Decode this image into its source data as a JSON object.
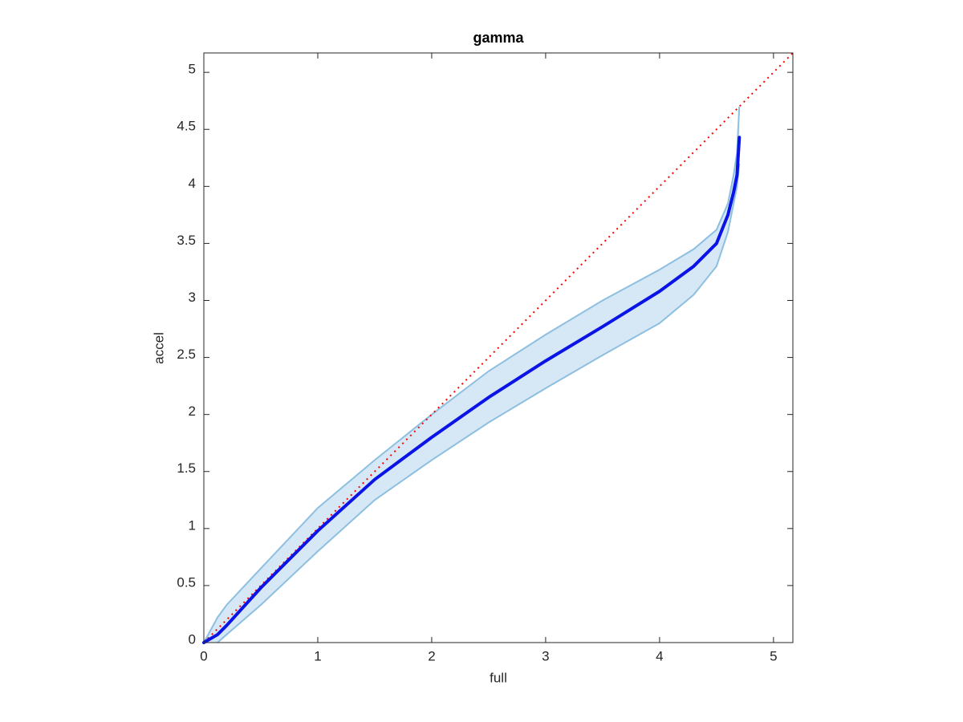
{
  "chart_data": {
    "type": "line",
    "title": "gamma",
    "x_label": "full",
    "y_label": "accel",
    "x": [
      0,
      0.12,
      0.2,
      0.5,
      1,
      1.5,
      2,
      2.5,
      3,
      3.5,
      4,
      4.3,
      4.5,
      4.6,
      4.65,
      4.68,
      4.7
    ],
    "series": [
      {
        "color": "#0a14e6",
        "line_style": "solid",
        "values": [
          0,
          0.07,
          0.15,
          0.48,
          0.98,
          1.43,
          1.8,
          2.15,
          2.47,
          2.77,
          3.08,
          3.3,
          3.5,
          3.75,
          3.95,
          4.1,
          4.43
        ]
      }
    ],
    "band": {
      "color": "#8dbfe0",
      "fill": "#d6e7f5",
      "upper": [
        0,
        0.22,
        0.33,
        0.65,
        1.18,
        1.6,
        2.0,
        2.38,
        2.7,
        3.0,
        3.27,
        3.45,
        3.62,
        3.85,
        4.1,
        4.3,
        4.7
      ],
      "lower": [
        null,
        0,
        0.07,
        0.33,
        0.8,
        1.25,
        1.6,
        1.93,
        2.23,
        2.52,
        2.8,
        3.05,
        3.3,
        3.6,
        3.85,
        4.0,
        4.2
      ]
    },
    "reference_line": {
      "x": [
        0,
        5.17
      ],
      "values": [
        0,
        5.17
      ],
      "color": "#ff0000",
      "line_style": "dotted"
    },
    "xlim": [
      0,
      5.17
    ],
    "ylim": [
      0,
      5.17
    ],
    "xticks": [
      0,
      1,
      2,
      3,
      4,
      5
    ],
    "yticks": [
      0,
      0.5,
      1,
      1.5,
      2,
      2.5,
      3,
      3.5,
      4,
      4.5,
      5
    ],
    "grid": false
  }
}
